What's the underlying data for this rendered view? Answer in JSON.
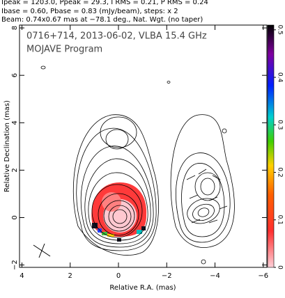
{
  "chart_data": {
    "type": "map",
    "header": [
      "Ipeak = 1203.0, Ppeak = 29.3, I RMS = 0.21, P RMS = 0.24",
      "Ibase = 0.60, Pbase = 0.83 (mJy/beam), steps: x 2",
      "Beam: 0.74x0.67 mas at −78.1 deg., Nat. Wgt. (no taper)"
    ],
    "title": "0716+714, 2013-06-02, VLBA 15.4 GHz",
    "subtitle": "MOJAVE Program",
    "x_label": "Relative R.A. (mas)",
    "y_label": "Relative Declination (mas)",
    "xlim": [
      4.1,
      -6.15
    ],
    "xticks": [
      4,
      2,
      0,
      {
        "value": -2,
        "label": "−2"
      },
      {
        "value": -4,
        "label": "−4"
      },
      {
        "value": -6,
        "label": "−6"
      }
    ],
    "ylim": [
      -2.1,
      8.12
    ],
    "yticks": [
      {
        "value": -2,
        "label": "−2"
      },
      0,
      2,
      4,
      6,
      8
    ],
    "colorbar_lim": [
      0,
      0.51
    ],
    "colorbar_ticks": [
      0,
      0.1,
      0.2,
      0.3,
      0.4,
      0.5
    ]
  }
}
